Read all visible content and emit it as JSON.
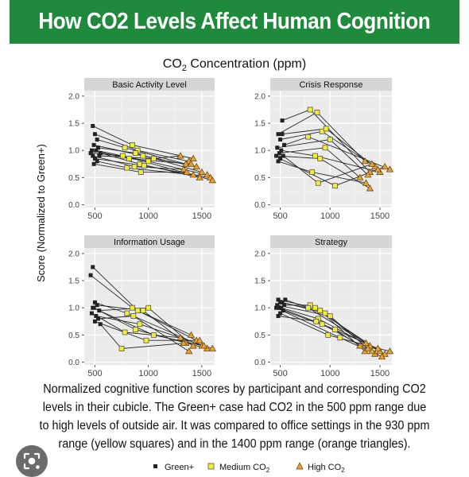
{
  "header": {
    "title": "How CO2 Levels Affect Human Cognition"
  },
  "caption": "Normalized cognitive function scores by participant and corresponding CO2 levels in their cubicle. The Green+ case had CO2 in the 500 ppm range due to high levels of outside air. It was compared to office settings in the 930 ppm range (yellow squares) and in the 1400 ppm range (orange triangles).",
  "chart_data": {
    "type": "line",
    "title": "CO₂ Concentration (ppm)",
    "ylabel": "Score (Normalized to Green+)",
    "xlim": [
      400,
      1620
    ],
    "ylim": [
      -0.05,
      2.1
    ],
    "xticks": [
      500,
      1000,
      1500
    ],
    "yticks": [
      "0.0",
      "0.5",
      "1.0",
      "1.5",
      "2.0"
    ],
    "grid": true,
    "legend_position": "bottom",
    "legend": [
      {
        "name": "Green+",
        "marker": "square",
        "color": "#222222"
      },
      {
        "name": "Medium CO₂",
        "marker": "square",
        "color": "#f2ee3a"
      },
      {
        "name": "High CO₂",
        "marker": "triangle",
        "color": "#e8a23a"
      }
    ],
    "panels": [
      {
        "title": "Basic Activity Level",
        "participants": [
          [
            [
              480,
              1.45
            ],
            [
              850,
              1.1
            ],
            [
              1420,
              0.85
            ]
          ],
          [
            [
              500,
              1.3
            ],
            [
              900,
              1.0
            ],
            [
              1380,
              0.8
            ]
          ],
          [
            [
              520,
              1.2
            ],
            [
              780,
              1.05
            ],
            [
              1350,
              0.75
            ]
          ],
          [
            [
              490,
              1.1
            ],
            [
              950,
              0.9
            ],
            [
              1450,
              0.7
            ]
          ],
          [
            [
              530,
              1.05
            ],
            [
              880,
              0.95
            ],
            [
              1500,
              0.6
            ]
          ],
          [
            [
              470,
              1.0
            ],
            [
              820,
              0.85
            ],
            [
              1400,
              0.75
            ]
          ],
          [
            [
              510,
              1.0
            ],
            [
              1000,
              0.8
            ],
            [
              1550,
              0.55
            ]
          ],
          [
            [
              550,
              0.95
            ],
            [
              920,
              0.75
            ],
            [
              1480,
              0.5
            ]
          ],
          [
            [
              480,
              0.9
            ],
            [
              870,
              0.7
            ],
            [
              1330,
              0.65
            ]
          ],
          [
            [
              500,
              0.85
            ],
            [
              960,
              0.72
            ],
            [
              1580,
              0.5
            ]
          ],
          [
            [
              520,
              0.8
            ],
            [
              800,
              0.68
            ],
            [
              1420,
              0.55
            ]
          ],
          [
            [
              490,
              0.75
            ],
            [
              930,
              0.6
            ],
            [
              1360,
              0.6
            ]
          ],
          [
            [
              540,
              0.9
            ],
            [
              1050,
              0.85
            ],
            [
              1300,
              0.9
            ]
          ],
          [
            [
              460,
              0.95
            ],
            [
              760,
              0.9
            ],
            [
              1600,
              0.45
            ]
          ]
        ]
      },
      {
        "title": "Crisis Response",
        "participants": [
          [
            [
              520,
              1.55
            ],
            [
              800,
              1.75
            ],
            [
              1400,
              0.6
            ]
          ],
          [
            [
              480,
              1.3
            ],
            [
              870,
              1.7
            ],
            [
              1350,
              0.8
            ]
          ],
          [
            [
              500,
              1.2
            ],
            [
              920,
              1.35
            ],
            [
              1450,
              0.7
            ]
          ],
          [
            [
              540,
              1.1
            ],
            [
              780,
              1.25
            ],
            [
              1600,
              0.65
            ]
          ],
          [
            [
              470,
              1.05
            ],
            [
              1000,
              1.2
            ],
            [
              1380,
              0.55
            ]
          ],
          [
            [
              510,
              1.0
            ],
            [
              850,
              0.9
            ],
            [
              1500,
              0.6
            ]
          ],
          [
            [
              490,
              0.95
            ],
            [
              950,
              1.05
            ],
            [
              1300,
              0.5
            ]
          ],
          [
            [
              530,
              0.9
            ],
            [
              880,
              0.4
            ],
            [
              1420,
              0.75
            ]
          ],
          [
            [
              500,
              0.85
            ],
            [
              1050,
              0.35
            ],
            [
              1550,
              0.7
            ]
          ],
          [
            [
              480,
              0.8
            ],
            [
              820,
              0.6
            ],
            [
              1360,
              0.4
            ]
          ],
          [
            [
              520,
              1.3
            ],
            [
              960,
              1.4
            ],
            [
              1480,
              0.65
            ]
          ],
          [
            [
              460,
              0.9
            ],
            [
              900,
              0.85
            ],
            [
              1400,
              0.3
            ]
          ]
        ]
      },
      {
        "title": "Information Usage",
        "participants": [
          [
            [
              480,
              1.75
            ],
            [
              900,
              0.95
            ],
            [
              1400,
              0.5
            ]
          ],
          [
            [
              460,
              1.6
            ],
            [
              850,
              1.0
            ],
            [
              1450,
              0.4
            ]
          ],
          [
            [
              500,
              1.1
            ],
            [
              800,
              0.9
            ],
            [
              1500,
              0.3
            ]
          ],
          [
            [
              520,
              1.05
            ],
            [
              950,
              0.95
            ],
            [
              1350,
              0.35
            ]
          ],
          [
            [
              490,
              1.0
            ],
            [
              880,
              0.6
            ],
            [
              1550,
              0.25
            ]
          ],
          [
            [
              540,
              0.95
            ],
            [
              1000,
              1.0
            ],
            [
              1420,
              0.3
            ]
          ],
          [
            [
              470,
              0.9
            ],
            [
              780,
              0.55
            ],
            [
              1300,
              0.45
            ]
          ],
          [
            [
              510,
              0.85
            ],
            [
              920,
              0.7
            ],
            [
              1600,
              0.25
            ]
          ],
          [
            [
              530,
              0.8
            ],
            [
              860,
              0.85
            ],
            [
              1380,
              0.2
            ]
          ],
          [
            [
              500,
              0.75
            ],
            [
              980,
              0.4
            ],
            [
              1480,
              0.4
            ]
          ],
          [
            [
              550,
              0.7
            ],
            [
              750,
              0.25
            ],
            [
              1330,
              0.35
            ]
          ],
          [
            [
              480,
              1.0
            ],
            [
              1050,
              0.5
            ],
            [
              1520,
              0.3
            ]
          ]
        ]
      },
      {
        "title": "Strategy",
        "participants": [
          [
            [
              480,
              1.15
            ],
            [
              850,
              1.0
            ],
            [
              1400,
              0.3
            ]
          ],
          [
            [
              500,
              1.1
            ],
            [
              900,
              0.95
            ],
            [
              1350,
              0.2
            ]
          ],
          [
            [
              520,
              1.1
            ],
            [
              950,
              0.9
            ],
            [
              1450,
              0.15
            ]
          ],
          [
            [
              540,
              1.05
            ],
            [
              800,
              1.05
            ],
            [
              1500,
              0.2
            ]
          ],
          [
            [
              470,
              1.05
            ],
            [
              1000,
              0.85
            ],
            [
              1380,
              0.25
            ]
          ],
          [
            [
              510,
              1.0
            ],
            [
              880,
              0.8
            ],
            [
              1550,
              0.15
            ]
          ],
          [
            [
              490,
              1.0
            ],
            [
              920,
              0.7
            ],
            [
              1420,
              0.2
            ]
          ],
          [
            [
              530,
              0.95
            ],
            [
              1050,
              0.6
            ],
            [
              1300,
              0.3
            ]
          ],
          [
            [
              500,
              0.9
            ],
            [
              980,
              0.5
            ],
            [
              1600,
              0.2
            ]
          ],
          [
            [
              480,
              0.85
            ],
            [
              860,
              0.75
            ],
            [
              1480,
              0.25
            ]
          ],
          [
            [
              550,
              1.15
            ],
            [
              780,
              1.0
            ],
            [
              1360,
              0.35
            ]
          ],
          [
            [
              460,
              1.0
            ],
            [
              1100,
              0.45
            ],
            [
              1520,
              0.1
            ]
          ]
        ]
      }
    ]
  }
}
